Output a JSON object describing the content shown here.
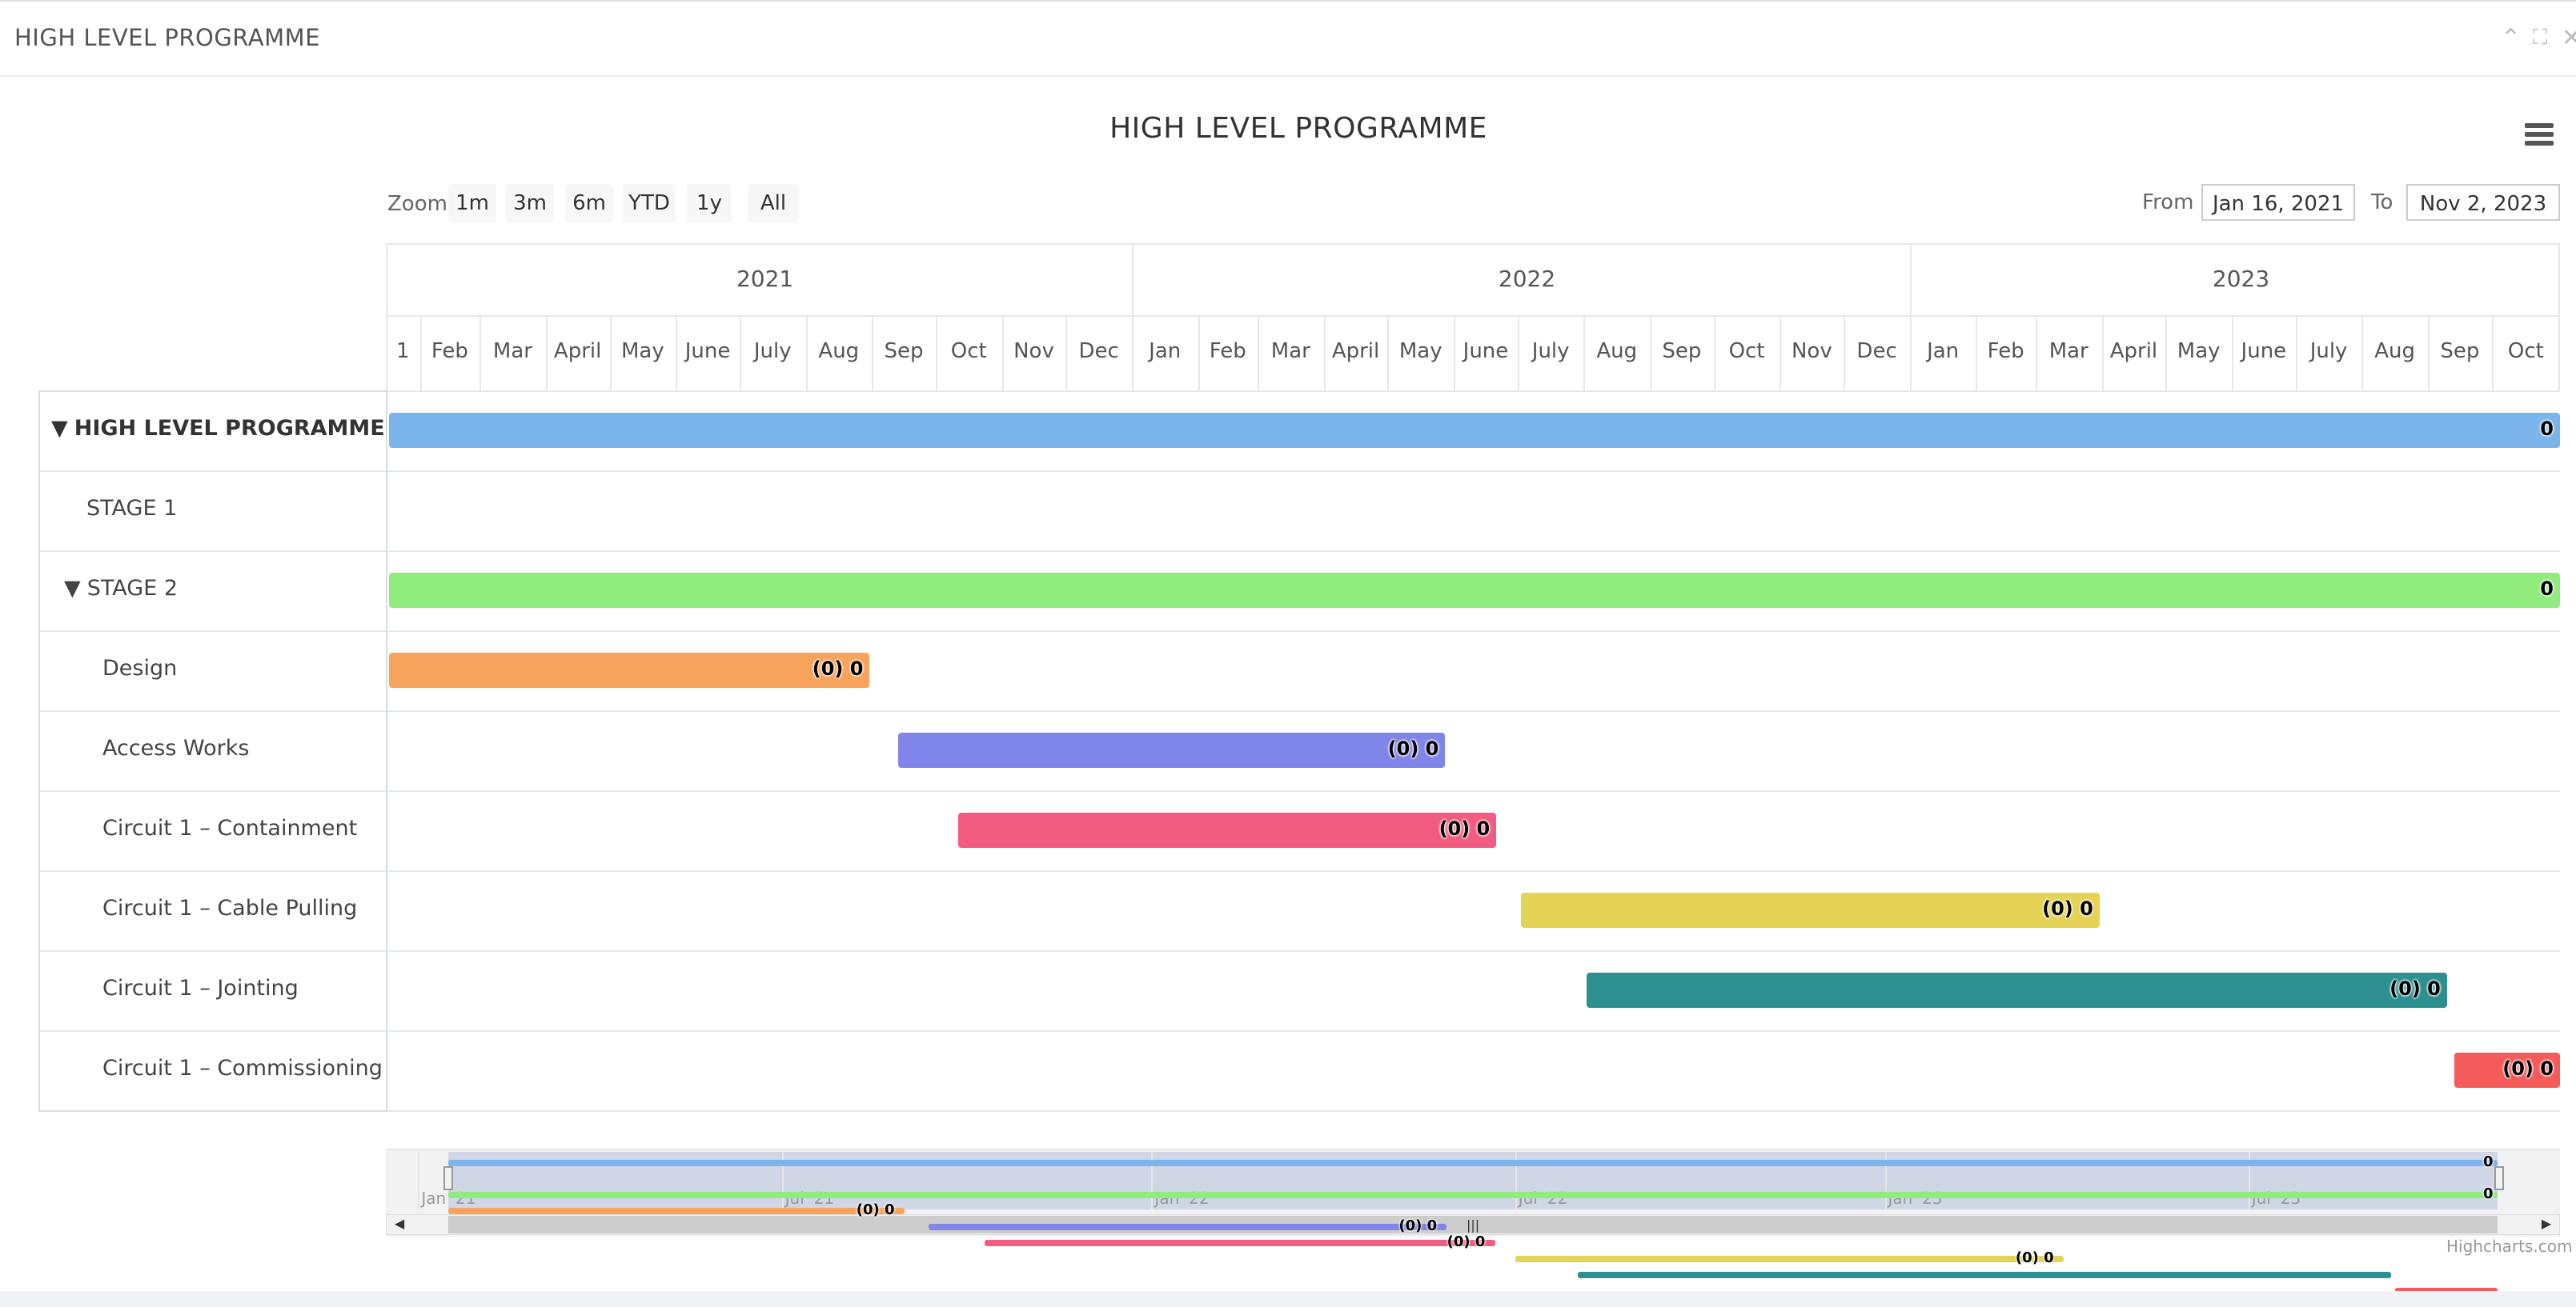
{
  "panel": {
    "title": "HIGH LEVEL PROGRAMME"
  },
  "chart": {
    "title": "HIGH LEVEL PROGRAMME",
    "zoom_label": "Zoom",
    "zoom_buttons": [
      "1m",
      "3m",
      "6m",
      "YTD",
      "1y",
      "All"
    ],
    "from_label": "From",
    "from_value": "Jan 16, 2021",
    "to_label": "To",
    "to_value": "Nov 2, 2023",
    "years": [
      "2021",
      "2022",
      "2023"
    ],
    "months": [
      "1",
      "Feb",
      "Mar",
      "April",
      "May",
      "June",
      "July",
      "Aug",
      "Sep",
      "Oct",
      "Nov",
      "Dec",
      "Jan",
      "Feb",
      "Mar",
      "April",
      "May",
      "June",
      "July",
      "Aug",
      "Sep",
      "Oct",
      "Nov",
      "Dec",
      "Jan",
      "Feb",
      "Mar",
      "April",
      "May",
      "June",
      "July",
      "Aug",
      "Sep",
      "Oct"
    ],
    "credit": "Highcharts.com",
    "navigator_labels": [
      "Jan '21",
      "Jul '21",
      "Jan '22",
      "Jul '22",
      "Jan '23",
      "Jul '23"
    ]
  },
  "rows": [
    {
      "label": "HIGH LEVEL PROGRAMME",
      "toggle": "▼",
      "bold": true
    },
    {
      "label": "STAGE 1"
    },
    {
      "label": "STAGE 2",
      "toggle": "▼"
    },
    {
      "label": "Design"
    },
    {
      "label": "Access Works"
    },
    {
      "label": "Circuit 1 – Containment"
    },
    {
      "label": "Circuit 1 – Cable Pulling"
    },
    {
      "label": "Circuit 1 – Jointing"
    },
    {
      "label": "Circuit 1 – Commissioning"
    }
  ],
  "chart_data": {
    "type": "gantt",
    "title": "HIGH LEVEL PROGRAMME",
    "x_range": [
      "2021-01-16",
      "2023-11-02"
    ],
    "tasks": [
      {
        "name": "HIGH LEVEL PROGRAMME",
        "start": "2021-01-16",
        "end": "2023-11-02",
        "color": "#7cb5ec",
        "label": "0"
      },
      {
        "name": "STAGE 1"
      },
      {
        "name": "STAGE 2",
        "start": "2021-01-16",
        "end": "2023-11-02",
        "color": "#90ed7d",
        "label": "0"
      },
      {
        "name": "Design",
        "start": "2021-01-16",
        "end": "2021-08-31",
        "color": "#f7a35c",
        "label": "(0) 0"
      },
      {
        "name": "Access Works",
        "start": "2021-09-12",
        "end": "2022-05-28",
        "color": "#8085e9",
        "label": "(0) 0"
      },
      {
        "name": "Circuit 1 – Containment",
        "start": "2021-10-10",
        "end": "2022-06-21",
        "color": "#f15c80",
        "label": "(0) 0"
      },
      {
        "name": "Circuit 1 – Cable Pulling",
        "start": "2022-07-01",
        "end": "2023-03-31",
        "color": "#e4d354",
        "label": "(0) 0"
      },
      {
        "name": "Circuit 1 – Jointing",
        "start": "2022-08-01",
        "end": "2023-09-10",
        "color": "#2b908f",
        "label": "(0) 0"
      },
      {
        "name": "Circuit 1 – Commissioning",
        "start": "2023-09-12",
        "end": "2023-11-02",
        "color": "#f45b5b",
        "label": "(0) 0"
      }
    ]
  }
}
